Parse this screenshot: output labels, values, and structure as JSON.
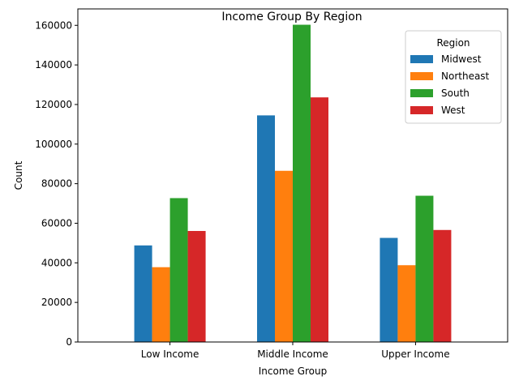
{
  "chart_data": {
    "type": "bar",
    "title": "Income Group By Region",
    "xlabel": "Income Group",
    "ylabel": "Count",
    "categories": [
      "Low Income",
      "Middle Income",
      "Upper Income"
    ],
    "series": [
      {
        "name": "Midwest",
        "color": "#1f77b4",
        "values": [
          48800,
          114500,
          52600
        ]
      },
      {
        "name": "Northeast",
        "color": "#ff7f0e",
        "values": [
          37800,
          86500,
          38800
        ]
      },
      {
        "name": "South",
        "color": "#2ca02c",
        "values": [
          72700,
          160300,
          73900
        ]
      },
      {
        "name": "West",
        "color": "#d62728",
        "values": [
          56100,
          123600,
          56600
        ]
      }
    ],
    "ylim": [
      0,
      168300
    ],
    "yticks": [
      0,
      20000,
      40000,
      60000,
      80000,
      100000,
      120000,
      140000,
      160000
    ],
    "legend": {
      "title": "Region",
      "placement": "top-right"
    },
    "grid": false
  }
}
